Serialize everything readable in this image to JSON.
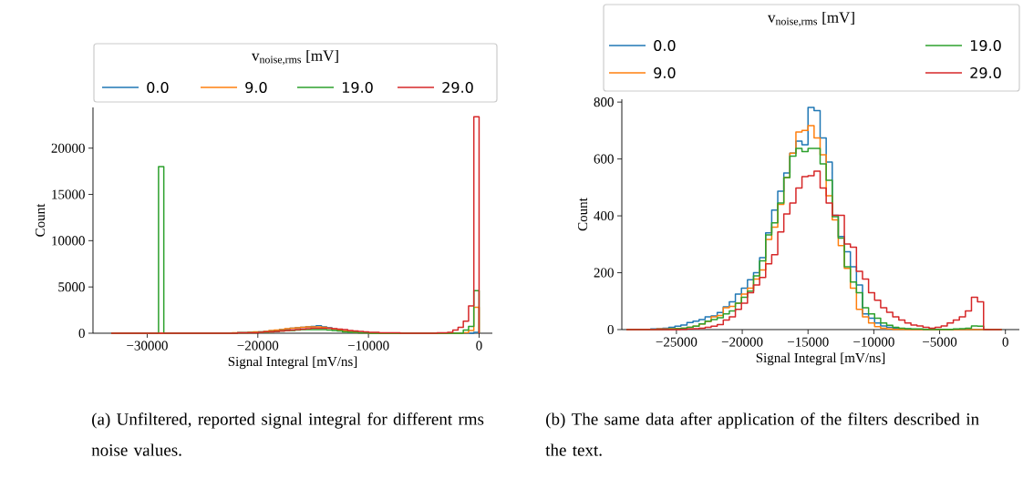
{
  "chart_data": [
    {
      "type": "histogram",
      "xlabel": "Signal Integral [mV/ns]",
      "ylabel": "Count",
      "legend": "top",
      "legend_title": "v$_{noise,rms}$ [mV]",
      "annotations": [
        "(a) Unfiltered, reported signal integral for different rms noise values."
      ],
      "xlim": [
        -34900,
        1200
      ],
      "ylim": [
        0,
        24400
      ],
      "xticks": [
        {
          "value": -30000,
          "label": "−30000"
        },
        {
          "value": -20000,
          "label": "−20000"
        },
        {
          "value": -10000,
          "label": "−10000"
        },
        0
      ],
      "yticks": [
        0,
        5000,
        10000,
        15000,
        20000
      ],
      "bins": [
        -33250,
        -32775,
        -32300,
        -31825,
        -31350,
        -30875,
        -30400,
        -29925,
        -29450,
        -28975,
        -28500,
        -28025,
        -27550,
        -27075,
        -26600,
        -26125,
        -25650,
        -25175,
        -24700,
        -24225,
        -23750,
        -23275,
        -22800,
        -22325,
        -21850,
        -21375,
        -20900,
        -20425,
        -19950,
        -19475,
        -19000,
        -18525,
        -18050,
        -17575,
        -17100,
        -16625,
        -16150,
        -15675,
        -15200,
        -14725,
        -14250,
        -13775,
        -13300,
        -12825,
        -12350,
        -11875,
        -11400,
        -10925,
        -10450,
        -9975,
        -9500,
        -9025,
        -8550,
        -8075,
        -7600,
        -7125,
        -6650,
        -6175,
        -5700,
        -5225,
        -4750,
        -4275,
        -3800,
        -3325,
        -2850,
        -2375,
        -1900,
        -1425,
        -950,
        -475,
        0
      ],
      "series": [
        {
          "name": "0.0",
          "color": "#1f77b4",
          "values": [
            0,
            0,
            0,
            0,
            0,
            0,
            0,
            0,
            0,
            0,
            0,
            0,
            0,
            0,
            0,
            0,
            0,
            0,
            0,
            0,
            0,
            0,
            0,
            0,
            50,
            50,
            100,
            100,
            150,
            200,
            250,
            300,
            400,
            450,
            550,
            600,
            650,
            700,
            750,
            800,
            700,
            600,
            450,
            350,
            250,
            150,
            100,
            50,
            50,
            0,
            0,
            0,
            0,
            0,
            0,
            0,
            0,
            0,
            0,
            0,
            0,
            0,
            0,
            0,
            0,
            0,
            0,
            0,
            0,
            100
          ]
        },
        {
          "name": "9.0",
          "color": "#ff7f0e",
          "values": [
            0,
            0,
            0,
            0,
            0,
            0,
            0,
            0,
            0,
            0,
            0,
            0,
            0,
            0,
            0,
            0,
            0,
            0,
            0,
            0,
            0,
            0,
            0,
            50,
            50,
            50,
            100,
            150,
            150,
            200,
            300,
            350,
            400,
            500,
            550,
            600,
            650,
            700,
            700,
            700,
            650,
            550,
            450,
            350,
            250,
            200,
            100,
            50,
            50,
            0,
            0,
            0,
            0,
            0,
            0,
            0,
            0,
            0,
            0,
            0,
            0,
            0,
            0,
            0,
            0,
            0,
            0,
            50,
            300,
            2800
          ]
        },
        {
          "name": "19.0",
          "color": "#2ca02c",
          "values": [
            0,
            0,
            0,
            0,
            0,
            0,
            0,
            0,
            0,
            18000,
            0,
            0,
            0,
            0,
            0,
            0,
            0,
            0,
            0,
            0,
            0,
            0,
            0,
            0,
            50,
            50,
            50,
            50,
            100,
            100,
            150,
            200,
            250,
            300,
            300,
            350,
            400,
            400,
            400,
            400,
            400,
            350,
            300,
            250,
            150,
            100,
            100,
            50,
            50,
            0,
            0,
            0,
            0,
            0,
            0,
            0,
            0,
            0,
            0,
            0,
            0,
            0,
            0,
            0,
            0,
            0,
            0,
            350,
            750,
            4600
          ]
        },
        {
          "name": "29.0",
          "color": "#d62728",
          "values": [
            0,
            0,
            0,
            0,
            0,
            0,
            0,
            0,
            0,
            0,
            0,
            0,
            0,
            0,
            0,
            0,
            0,
            0,
            0,
            0,
            0,
            0,
            0,
            0,
            50,
            50,
            50,
            50,
            100,
            150,
            150,
            200,
            250,
            300,
            350,
            400,
            450,
            500,
            550,
            550,
            550,
            550,
            500,
            450,
            400,
            300,
            250,
            200,
            150,
            100,
            100,
            50,
            50,
            50,
            50,
            0,
            0,
            0,
            0,
            0,
            0,
            0,
            50,
            50,
            100,
            350,
            650,
            1300,
            2950,
            23400
          ]
        }
      ]
    },
    {
      "type": "histogram",
      "xlabel": "Signal Integral [mV/ns]",
      "ylabel": "Count",
      "legend": "top",
      "legend_title": "v$_{noise,rms}$ [mV]",
      "annotations": [
        "(b) The same data after application of the filters described in the text."
      ],
      "xlim": [
        -29150,
        1060
      ],
      "ylim": [
        0,
        810
      ],
      "xticks": [
        {
          "value": -25000,
          "label": "−25000"
        },
        {
          "value": -20000,
          "label": "−20000"
        },
        {
          "value": -15000,
          "label": "−15000"
        },
        {
          "value": -10000,
          "label": "−10000"
        },
        {
          "value": -5000,
          "label": "−5000"
        },
        0
      ],
      "yticks": [
        0,
        200,
        400,
        600,
        800
      ],
      "bins": [
        -28800,
        -28340,
        -27880,
        -27420,
        -26960,
        -26500,
        -26040,
        -25580,
        -25120,
        -24660,
        -24200,
        -23740,
        -23280,
        -22820,
        -22360,
        -21900,
        -21440,
        -20980,
        -20520,
        -20060,
        -19600,
        -19140,
        -18680,
        -18220,
        -17760,
        -17300,
        -16840,
        -16380,
        -15920,
        -15460,
        -15000,
        -14540,
        -14080,
        -13620,
        -13160,
        -12700,
        -12240,
        -11780,
        -11320,
        -10860,
        -10400,
        -9940,
        -9480,
        -9020,
        -8560,
        -8100,
        -7640,
        -7180,
        -6720,
        -6260,
        -5800,
        -5340,
        -4880,
        -4420,
        -3960,
        -3500,
        -3040,
        -2580,
        -2120,
        -1660,
        -1200,
        -740,
        -280
      ],
      "series": [
        {
          "name": "0.0",
          "color": "#1f77b4",
          "values": [
            0,
            0,
            1,
            1,
            2,
            3,
            5,
            8,
            12,
            16,
            25,
            30,
            35,
            45,
            48,
            60,
            80,
            98,
            125,
            146,
            175,
            200,
            253,
            340,
            420,
            487,
            551,
            620,
            663,
            650,
            781,
            770,
            674,
            589,
            402,
            327,
            274,
            221,
            157,
            55,
            40,
            23,
            13,
            8,
            5,
            3,
            2,
            1,
            1,
            1,
            0,
            0,
            0,
            0,
            0,
            0,
            0,
            0,
            0,
            0,
            0,
            0
          ]
        },
        {
          "name": "9.0",
          "color": "#ff7f0e",
          "values": [
            0,
            0,
            0,
            1,
            1,
            2,
            2,
            3,
            4,
            5,
            8,
            12,
            20,
            29,
            45,
            50,
            77,
            82,
            93,
            125,
            146,
            178,
            210,
            317,
            360,
            440,
            535,
            620,
            695,
            700,
            717,
            674,
            615,
            471,
            386,
            295,
            215,
            146,
            71,
            45,
            23,
            10,
            5,
            2,
            1,
            1,
            0,
            0,
            0,
            0,
            0,
            0,
            0,
            0,
            0,
            0,
            0,
            0,
            0,
            0,
            0,
            0
          ]
        },
        {
          "name": "19.0",
          "color": "#2ca02c",
          "values": [
            0,
            0,
            0,
            0,
            0,
            0,
            1,
            2,
            3,
            5,
            8,
            12,
            20,
            30,
            35,
            42,
            55,
            66,
            93,
            114,
            135,
            189,
            242,
            333,
            375,
            445,
            535,
            610,
            637,
            626,
            637,
            637,
            583,
            525,
            397,
            322,
            221,
            167,
            130,
            77,
            55,
            40,
            23,
            15,
            8,
            5,
            3,
            2,
            2,
            1,
            1,
            1,
            1,
            1,
            2,
            3,
            5,
            13,
            12,
            0,
            0,
            0
          ]
        },
        {
          "name": "29.0",
          "color": "#d62728",
          "values": [
            0,
            0,
            0,
            0,
            0,
            0,
            0,
            0,
            0,
            1,
            2,
            3,
            5,
            8,
            12,
            18,
            34,
            45,
            71,
            93,
            130,
            157,
            183,
            231,
            263,
            343,
            407,
            445,
            498,
            538,
            541,
            557,
            498,
            445,
            402,
            402,
            301,
            290,
            205,
            178,
            130,
            103,
            77,
            61,
            45,
            34,
            23,
            16,
            13,
            8,
            5,
            8,
            13,
            23,
            34,
            45,
            66,
            114,
            98,
            0,
            0,
            0
          ]
        }
      ]
    }
  ]
}
